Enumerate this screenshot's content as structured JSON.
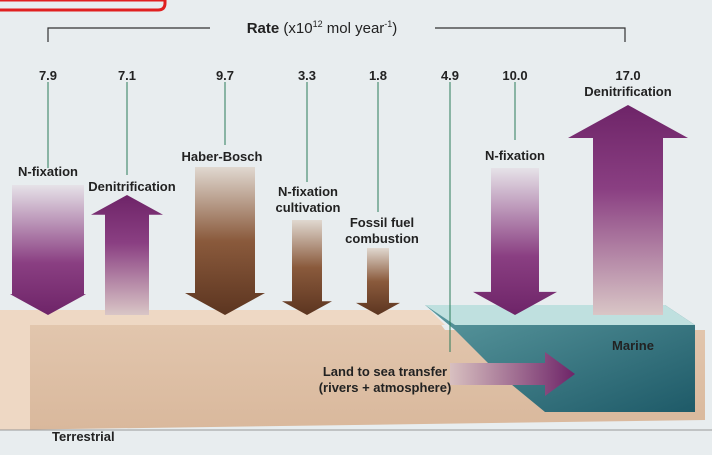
{
  "title": {
    "label": "Rate",
    "open": "(x10",
    "exponent": "12",
    "unit": " mol year",
    "unit_exponent": "-1",
    "close": ")"
  },
  "fluxes": [
    {
      "rate": "7.9",
      "label": [
        "N-fixation"
      ]
    },
    {
      "rate": "7.1",
      "label": [
        "Denitrification"
      ]
    },
    {
      "rate": "9.7",
      "label": [
        "Haber-Bosch"
      ]
    },
    {
      "rate": "3.3",
      "label": [
        "N-fixation",
        "cultivation"
      ]
    },
    {
      "rate": "1.8",
      "label": [
        "Fossil fuel",
        "combustion"
      ]
    },
    {
      "rate": "4.9",
      "label": [
        "Land to sea transfer",
        "(rivers + atmosphere)"
      ]
    },
    {
      "rate": "10.0",
      "label": [
        "N-fixation"
      ]
    },
    {
      "rate": "17.0",
      "label": [
        "Denitrification"
      ]
    }
  ],
  "regions": {
    "marine": "Marine",
    "terrestrial": "Terrestrial"
  }
}
